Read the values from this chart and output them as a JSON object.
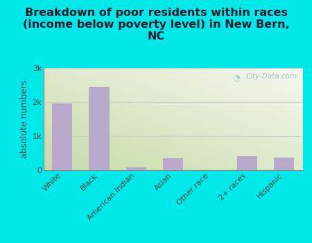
{
  "categories": [
    "White",
    "Black",
    "American Indian",
    "Asian",
    "Other race",
    "2+ races",
    "Hispanic"
  ],
  "values": [
    1950,
    2450,
    75,
    350,
    0,
    400,
    375
  ],
  "bar_color": "#b8a8cc",
  "background_color": "#00e8e8",
  "title": "Breakdown of poor residents within races\n(income below poverty level) in New Bern,\nNC",
  "ylabel": "absolute numbers",
  "yticks": [
    0,
    1000,
    2000,
    3000
  ],
  "ytick_labels": [
    "0",
    "1k",
    "2k",
    "3k"
  ],
  "ylim": [
    0,
    3000
  ],
  "watermark": "City-Data.com",
  "grid_color": "#cccccc",
  "title_fontsize": 11.5,
  "ylabel_fontsize": 9,
  "plot_bg_color_green": "#c8dba8",
  "plot_bg_color_white": "#f5f8f0"
}
